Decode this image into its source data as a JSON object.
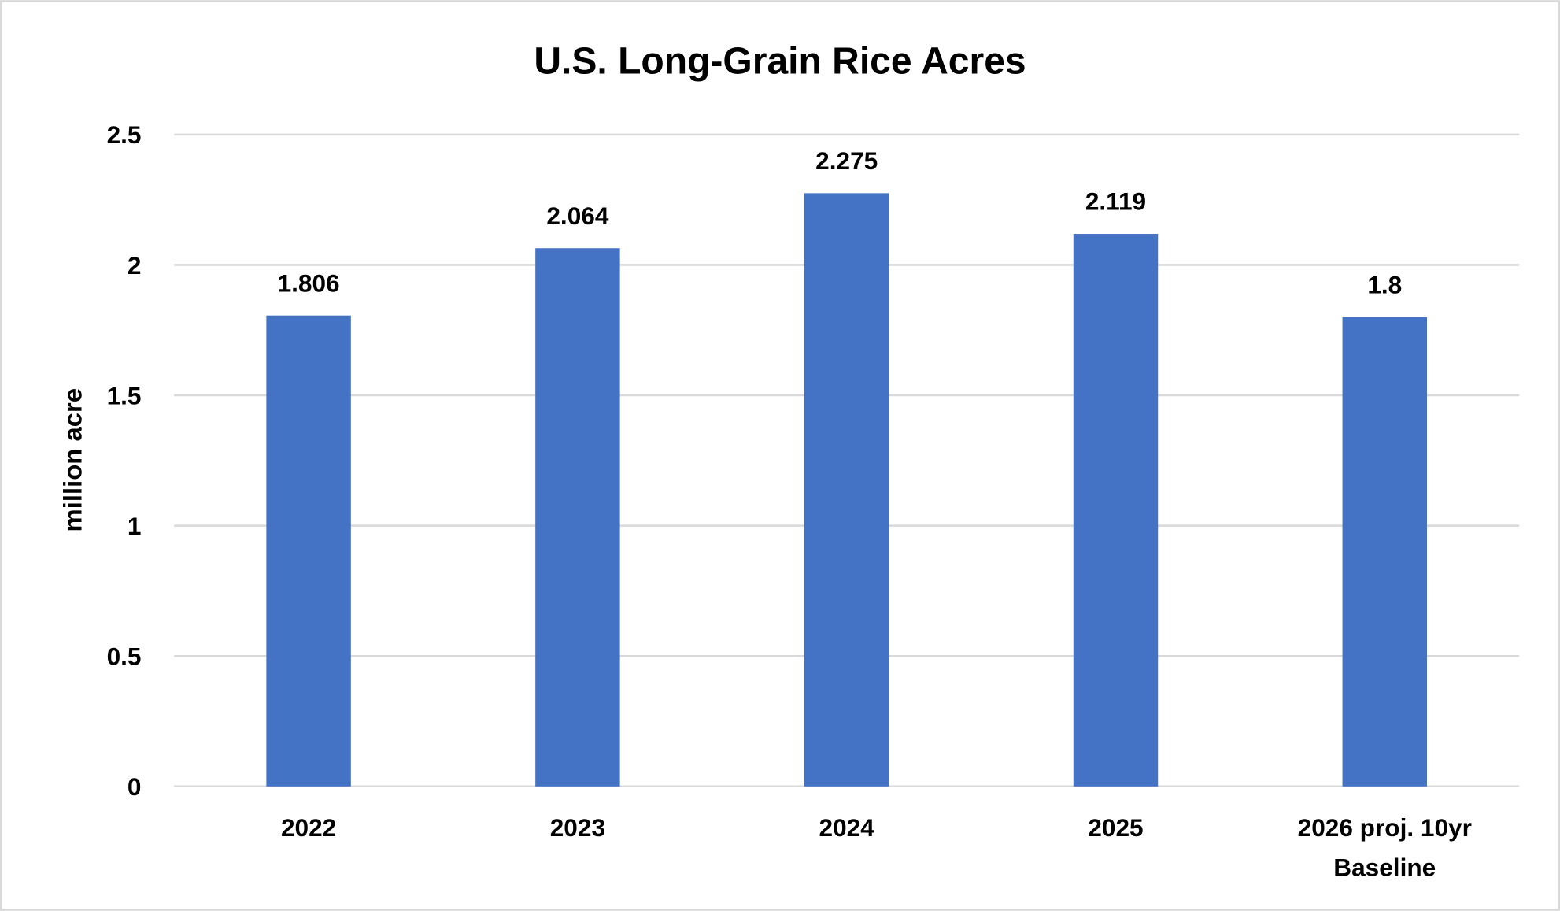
{
  "chart_data": {
    "type": "bar",
    "title": "U.S. Long-Grain Rice Acres",
    "xlabel": "",
    "ylabel": "million acre",
    "categories": [
      "2022",
      "2023",
      "2024",
      "2025",
      "2026 proj. 10yr Baseline"
    ],
    "category_lines": [
      [
        "2022"
      ],
      [
        "2023"
      ],
      [
        "2024"
      ],
      [
        "2025"
      ],
      [
        "2026 proj. 10yr",
        "Baseline"
      ]
    ],
    "values": [
      1.806,
      2.064,
      2.275,
      2.119,
      1.8
    ],
    "data_labels": [
      "1.806",
      "2.064",
      "2.275",
      "2.119",
      "1.8"
    ],
    "ylim": [
      0,
      2.5
    ],
    "yticks": [
      0,
      0.5,
      1,
      1.5,
      2,
      2.5
    ],
    "ytick_labels": [
      "0",
      "0.5",
      "1",
      "1.5",
      "2",
      "2.5"
    ],
    "grid": true,
    "legend": "none",
    "bar_color": "#4472C4",
    "grid_color": "#D9D9D9"
  }
}
